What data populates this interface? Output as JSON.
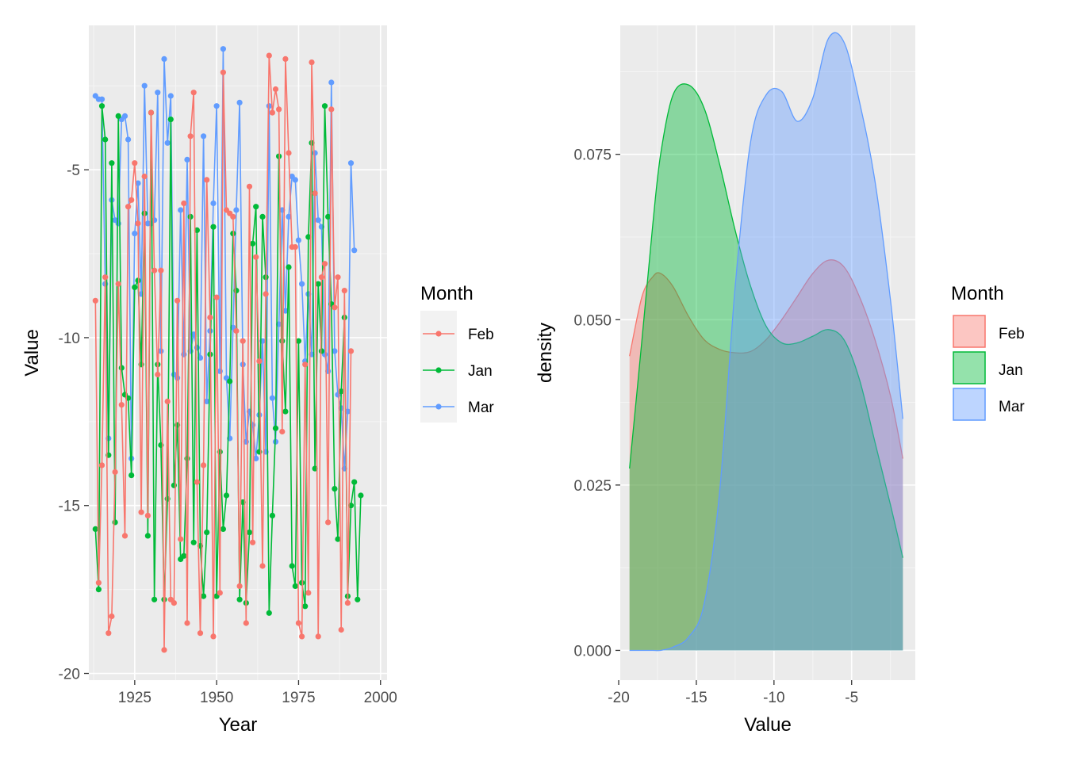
{
  "colors": {
    "Feb": "#F8766D",
    "Jan": "#00BA38",
    "Mar": "#619CFF"
  },
  "chart_data": [
    {
      "type": "line",
      "xlabel": "Year",
      "ylabel": "Value",
      "xlim": [
        1911,
        2002
      ],
      "ylim": [
        -20.2,
        -0.7
      ],
      "xticks": [
        1925,
        1950,
        1975,
        2000
      ],
      "yticks": [
        -20,
        -15,
        -10,
        -5
      ],
      "xtick_labels": [
        "1925",
        "1950",
        "1975",
        "2000"
      ],
      "ytick_labels": [
        "-20",
        "-15",
        "-10",
        "-5"
      ],
      "grid": true,
      "legend": {
        "title": "Month",
        "position": "right",
        "entries": [
          "Feb",
          "Jan",
          "Mar"
        ]
      },
      "x_start": 1913,
      "series": [
        {
          "name": "Feb",
          "values": [
            -8.9,
            -17.3,
            -13.8,
            -8.2,
            -18.8,
            -18.3,
            -14.0,
            -8.4,
            -12.0,
            -15.9,
            -6.1,
            -5.9,
            -4.8,
            -6.6,
            -15.2,
            -5.2,
            -15.3,
            -3.3,
            -8.0,
            -11.1,
            -8.0,
            -19.3,
            -11.9,
            -17.8,
            -17.9,
            -8.9,
            -16.0,
            -6.0,
            -18.5,
            -4.0,
            -2.7,
            -14.3,
            -18.8,
            -13.8,
            -5.3,
            -9.4,
            -18.9,
            -8.8,
            -17.6,
            -2.1,
            -6.2,
            -6.3,
            -6.4,
            -9.8,
            -17.4,
            -10.1,
            -18.5,
            -5.5,
            -16.1,
            -7.6,
            -10.7,
            -16.8,
            -8.7,
            -1.6,
            -3.3,
            -2.6,
            -3.2,
            -12.8,
            -1.7,
            -4.5,
            -7.3,
            -7.3,
            -18.5,
            -18.9,
            -10.8,
            -17.6,
            -1.8,
            -5.7,
            -18.9,
            -8.2,
            -7.8,
            -15.5,
            -3.2,
            -9.1,
            -8.2,
            -18.7,
            -8.6,
            -17.9,
            -10.4
          ]
        },
        {
          "name": "Jan",
          "values": [
            -15.7,
            -17.5,
            -3.1,
            -4.1,
            -13.5,
            -4.8,
            -15.5,
            -3.4,
            -10.9,
            -11.7,
            -11.8,
            -14.1,
            -8.5,
            -8.3,
            -10.8,
            -6.3,
            -15.9,
            -3.3,
            -17.8,
            -10.8,
            -13.2,
            -17.8,
            -14.8,
            -3.5,
            -14.4,
            -12.6,
            -16.6,
            -16.5,
            -13.6,
            -6.4,
            -16.1,
            -6.8,
            -16.2,
            -17.7,
            -15.8,
            -10.5,
            -6.7,
            -17.7,
            -13.4,
            -15.7,
            -14.7,
            -11.3,
            -6.9,
            -8.6,
            -17.8,
            -14.9,
            -17.9,
            -15.8,
            -7.2,
            -6.1,
            -13.4,
            -6.4,
            -8.2,
            -18.2,
            -15.3,
            -12.7,
            -4.6,
            -10.1,
            -12.2,
            -7.9,
            -16.8,
            -17.4,
            -10.1,
            -17.3,
            -18.0,
            -7.0,
            -4.2,
            -13.9,
            -8.4,
            -10.4,
            -3.1,
            -6.4,
            -9.0,
            -14.5,
            -16.0,
            -11.6,
            -9.4,
            -17.7,
            -15.0,
            -14.3,
            -17.8,
            -14.7
          ]
        },
        {
          "name": "Mar",
          "values": [
            -2.8,
            -2.9,
            -2.9,
            -8.4,
            -13.0,
            -5.9,
            -6.5,
            -6.6,
            -3.5,
            -3.4,
            -4.1,
            -13.6,
            -6.9,
            -5.4,
            -8.7,
            -2.5,
            -6.6,
            -6.6,
            -6.5,
            -2.7,
            -10.4,
            -1.7,
            -4.2,
            -2.8,
            -11.1,
            -11.2,
            -6.2,
            -10.5,
            -4.7,
            -10.4,
            -9.9,
            -10.3,
            -10.6,
            -4.0,
            -11.9,
            -9.8,
            -6.0,
            -3.1,
            -11.0,
            -1.4,
            -11.2,
            -13.0,
            -9.7,
            -6.2,
            -3.0,
            -10.8,
            -13.1,
            -12.2,
            -12.6,
            -13.6,
            -12.3,
            -10.1,
            -13.4,
            -3.1,
            -11.8,
            -13.1,
            -9.6,
            -6.2,
            -9.2,
            -6.4,
            -5.2,
            -5.3,
            -7.1,
            -8.4,
            -10.7,
            -8.7,
            -10.5,
            -4.5,
            -6.5,
            -6.7,
            -10.5,
            -11.0,
            -2.4,
            -10.4,
            -11.7,
            -12.1,
            -13.9,
            -12.2,
            -4.8,
            -7.4
          ]
        }
      ]
    },
    {
      "type": "area",
      "xlabel": "Value",
      "ylabel": "density",
      "xlim": [
        -19.9,
        -0.9
      ],
      "ylim": [
        -0.0045,
        0.0945
      ],
      "xticks": [
        -20,
        -15,
        -10,
        -5
      ],
      "yticks": [
        0.0,
        0.025,
        0.05,
        0.075
      ],
      "xtick_labels": [
        "-20",
        "-15",
        "-10",
        "-5"
      ],
      "ytick_labels": [
        "0.000",
        "0.025",
        "0.050",
        "0.075"
      ],
      "grid": true,
      "legend": {
        "title": "Month",
        "position": "right",
        "entries": [
          "Feb",
          "Jan",
          "Mar"
        ]
      },
      "x": [
        -19.3,
        -18.5,
        -17.8,
        -17.3,
        -16.5,
        -15.5,
        -14.5,
        -13.5,
        -12.5,
        -11.5,
        -10.5,
        -9.5,
        -8.5,
        -7.5,
        -6.5,
        -5.5,
        -4.5,
        -3.5,
        -2.5,
        -1.7
      ],
      "series": [
        {
          "name": "Feb",
          "values": [
            0.0445,
            0.0535,
            0.0565,
            0.057,
            0.055,
            0.0505,
            0.047,
            0.0455,
            0.045,
            0.0452,
            0.047,
            0.05,
            0.0535,
            0.057,
            0.059,
            0.058,
            0.0535,
            0.047,
            0.0385,
            0.029
          ]
        },
        {
          "name": "Jan",
          "values": [
            0.0275,
            0.047,
            0.0645,
            0.075,
            0.084,
            0.0855,
            0.082,
            0.0735,
            0.0635,
            0.055,
            0.049,
            0.0465,
            0.0465,
            0.0475,
            0.0485,
            0.047,
            0.041,
            0.0315,
            0.022,
            0.014
          ]
        },
        {
          "name": "Mar",
          "values": [
            0.0,
            0.0,
            0.0,
            0.0,
            0.0005,
            0.002,
            0.007,
            0.024,
            0.055,
            0.077,
            0.084,
            0.0845,
            0.08,
            0.0835,
            0.0925,
            0.092,
            0.083,
            0.071,
            0.053,
            0.035
          ]
        }
      ]
    }
  ]
}
